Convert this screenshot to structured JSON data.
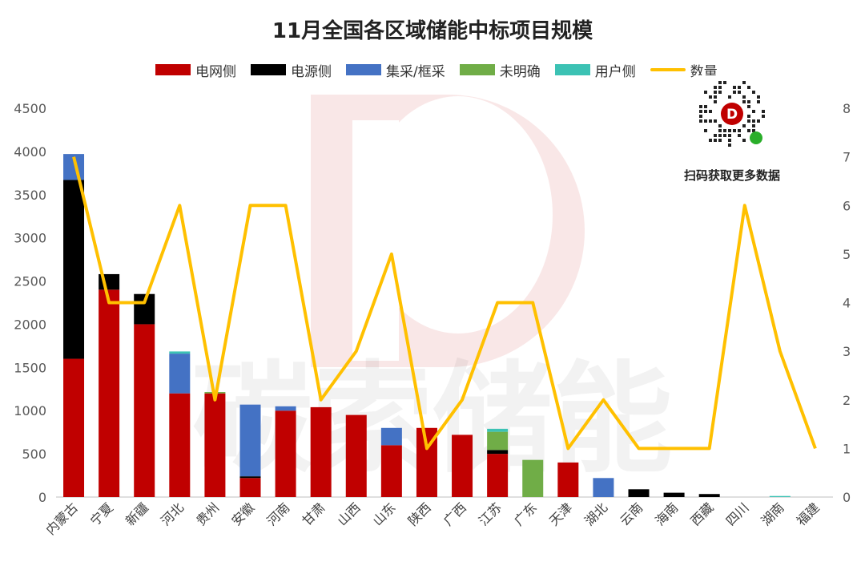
{
  "chart_data": {
    "type": "bar",
    "title": "11月全国各区域储能中标项目规模",
    "categories": [
      "内蒙古",
      "宁夏",
      "新疆",
      "河北",
      "贵州",
      "安徽",
      "河南",
      "甘肃",
      "山西",
      "山东",
      "陕西",
      "广西",
      "江苏",
      "广东",
      "天津",
      "湖北",
      "云南",
      "海南",
      "西藏",
      "四川",
      "湖南",
      "福建"
    ],
    "stacked": true,
    "series": [
      {
        "name": "电网侧",
        "color": "#C00000",
        "values": [
          1600,
          2400,
          2000,
          1200,
          1200,
          220,
          1000,
          1040,
          950,
          600,
          800,
          720,
          500,
          0,
          400,
          0,
          0,
          0,
          0,
          0,
          0,
          0
        ]
      },
      {
        "name": "电源侧",
        "color": "#000000",
        "values": [
          2070,
          180,
          350,
          0,
          0,
          20,
          0,
          0,
          0,
          0,
          0,
          0,
          45,
          0,
          0,
          0,
          90,
          50,
          35,
          0,
          0,
          0
        ]
      },
      {
        "name": "集采/框采",
        "color": "#4472C4",
        "values": [
          300,
          0,
          0,
          460,
          0,
          830,
          50,
          0,
          0,
          200,
          0,
          0,
          0,
          0,
          0,
          220,
          0,
          0,
          0,
          0,
          0,
          0
        ]
      },
      {
        "name": "未明确",
        "color": "#70AD47",
        "values": [
          0,
          0,
          0,
          0,
          15,
          0,
          0,
          0,
          0,
          0,
          0,
          0,
          210,
          430,
          0,
          0,
          0,
          0,
          0,
          0,
          0,
          0
        ]
      },
      {
        "name": "用户侧",
        "color": "#3CC2B4",
        "values": [
          0,
          0,
          0,
          25,
          0,
          0,
          0,
          0,
          0,
          0,
          0,
          0,
          35,
          0,
          0,
          0,
          0,
          0,
          0,
          0,
          12,
          0
        ]
      }
    ],
    "line_series": {
      "name": "数量",
      "color": "#FFC000",
      "axis": "right",
      "values": [
        7,
        4,
        4,
        6,
        2,
        6,
        6,
        2,
        3,
        5,
        1,
        2,
        4,
        4,
        1,
        2,
        1,
        1,
        1,
        6,
        3,
        1
      ]
    },
    "y_left": {
      "min": 0,
      "max": 4500,
      "ticks": [
        "0",
        "500",
        "1000",
        "1500",
        "2000",
        "2500",
        "3000",
        "3500",
        "4000",
        "4500"
      ]
    },
    "y_right": {
      "min": 0,
      "max": 8,
      "ticks": [
        "0",
        "1",
        "2",
        "3",
        "4",
        "5",
        "6",
        "7",
        "8"
      ]
    },
    "grid": false,
    "legend_position": "top"
  },
  "legend": {
    "items": [
      {
        "label": "电网侧",
        "color": "#C00000",
        "kind": "bar"
      },
      {
        "label": "电源侧",
        "color": "#000000",
        "kind": "bar"
      },
      {
        "label": "集采/框采",
        "color": "#4472C4",
        "kind": "bar"
      },
      {
        "label": "未明确",
        "color": "#70AD47",
        "kind": "bar"
      },
      {
        "label": "用户侧",
        "color": "#3CC2B4",
        "kind": "bar"
      },
      {
        "label": "数量",
        "color": "#FFC000",
        "kind": "line"
      }
    ]
  },
  "watermark": {
    "text": "碳索储能"
  },
  "qr": {
    "caption": "扫码获取更多数据"
  }
}
